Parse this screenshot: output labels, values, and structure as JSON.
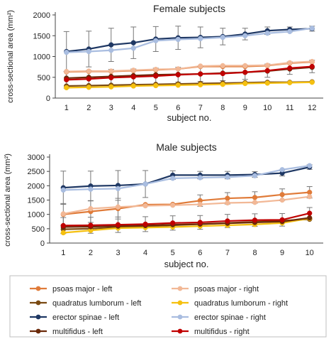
{
  "chart_data": [
    {
      "type": "line",
      "title": "Female subjects",
      "xlabel": "subject no.",
      "ylabel": "cross-sectional area (mm²)",
      "ylim": [
        0,
        2000
      ],
      "yticks": [
        0,
        500,
        1000,
        1500,
        2000
      ],
      "x": [
        1,
        2,
        3,
        4,
        5,
        6,
        7,
        8,
        9,
        10,
        11,
        12
      ],
      "grid": false,
      "series": [
        {
          "name": "psoas major - left",
          "values": [
            630,
            640,
            640,
            660,
            680,
            700,
            760,
            760,
            760,
            780,
            840,
            870
          ],
          "errors": [
            0,
            0,
            0,
            0,
            0,
            0,
            0,
            0,
            0,
            0,
            0,
            0
          ]
        },
        {
          "name": "psoas major - right",
          "values": [
            640,
            650,
            650,
            670,
            690,
            700,
            770,
            780,
            780,
            790,
            850,
            880
          ],
          "errors": [
            0,
            0,
            0,
            0,
            0,
            0,
            0,
            0,
            0,
            0,
            0,
            0
          ]
        },
        {
          "name": "quadratus lumborum - left",
          "values": [
            290,
            300,
            310,
            320,
            330,
            340,
            350,
            360,
            370,
            380,
            380,
            390
          ],
          "errors": [
            0,
            0,
            0,
            0,
            0,
            0,
            0,
            0,
            0,
            0,
            0,
            0
          ]
        },
        {
          "name": "quadratus lumborum - right",
          "values": [
            250,
            260,
            270,
            290,
            300,
            310,
            320,
            330,
            350,
            360,
            370,
            380
          ],
          "errors": [
            0,
            0,
            0,
            0,
            0,
            0,
            0,
            0,
            0,
            0,
            0,
            0
          ]
        },
        {
          "name": "erector spinae - left",
          "values": [
            1120,
            1180,
            1280,
            1330,
            1420,
            1450,
            1460,
            1480,
            1540,
            1620,
            1650,
            1670
          ],
          "errors": [
            480,
            430,
            400,
            380,
            300,
            280,
            250,
            200,
            140,
            90,
            60,
            60
          ]
        },
        {
          "name": "erector spinae - right",
          "values": [
            1100,
            1120,
            1150,
            1200,
            1380,
            1410,
            1430,
            1460,
            1500,
            1560,
            1600,
            1680
          ],
          "errors": [
            0,
            0,
            0,
            0,
            0,
            0,
            0,
            0,
            0,
            0,
            0,
            0
          ]
        },
        {
          "name": "multifidus - left",
          "values": [
            480,
            500,
            520,
            540,
            560,
            570,
            580,
            600,
            620,
            650,
            700,
            740
          ],
          "errors": [
            0,
            0,
            0,
            0,
            0,
            0,
            0,
            0,
            0,
            0,
            0,
            0
          ]
        },
        {
          "name": "multifidus - right",
          "values": [
            440,
            460,
            490,
            510,
            530,
            560,
            580,
            590,
            620,
            660,
            720,
            760
          ],
          "errors": [
            200,
            200,
            200,
            190,
            190,
            180,
            180,
            170,
            170,
            160,
            150,
            150
          ]
        }
      ]
    },
    {
      "type": "line",
      "title": "Male subjects",
      "xlabel": "subject no.",
      "ylabel": "cross-sectional area (mm²)",
      "ylim": [
        0,
        3000
      ],
      "yticks": [
        0,
        500,
        1000,
        1500,
        2000,
        2500,
        3000
      ],
      "x": [
        1,
        2,
        3,
        4,
        5,
        6,
        7,
        8,
        9,
        10
      ],
      "grid": false,
      "series": [
        {
          "name": "psoas major - left",
          "values": [
            1000,
            1100,
            1200,
            1340,
            1350,
            1480,
            1560,
            1590,
            1690,
            1770
          ],
          "errors": [
            380,
            380,
            360,
            0,
            0,
            200,
            200,
            200,
            200,
            200
          ]
        },
        {
          "name": "psoas major - right",
          "values": [
            1020,
            1200,
            1260,
            1300,
            1320,
            1350,
            1400,
            1420,
            1500,
            1620
          ],
          "errors": [
            0,
            0,
            0,
            0,
            0,
            0,
            0,
            0,
            0,
            0
          ]
        },
        {
          "name": "quadratus lumborum - left",
          "values": [
            480,
            500,
            550,
            580,
            620,
            660,
            700,
            740,
            780,
            830
          ],
          "errors": [
            0,
            0,
            0,
            0,
            0,
            0,
            0,
            0,
            0,
            0
          ]
        },
        {
          "name": "quadratus lumborum - right",
          "values": [
            360,
            440,
            520,
            540,
            560,
            590,
            620,
            650,
            700,
            860
          ],
          "errors": [
            0,
            0,
            0,
            0,
            0,
            0,
            0,
            0,
            0,
            0
          ]
        },
        {
          "name": "erector spinae - left",
          "values": [
            1930,
            1990,
            2010,
            2060,
            2370,
            2370,
            2370,
            2390,
            2440,
            2650
          ],
          "errors": [
            580,
            520,
            520,
            470,
            150,
            130,
            130,
            100,
            100,
            80
          ]
        },
        {
          "name": "erector spinae - right",
          "values": [
            1850,
            1880,
            1900,
            2060,
            2260,
            2280,
            2300,
            2350,
            2560,
            2700
          ],
          "errors": [
            0,
            0,
            0,
            0,
            0,
            0,
            0,
            0,
            0,
            0
          ]
        },
        {
          "name": "multifidus - left",
          "values": [
            560,
            570,
            590,
            610,
            640,
            660,
            690,
            720,
            750,
            880
          ],
          "errors": [
            0,
            0,
            0,
            0,
            0,
            0,
            0,
            0,
            0,
            0
          ]
        },
        {
          "name": "multifidus - right",
          "values": [
            610,
            620,
            640,
            660,
            700,
            720,
            770,
            800,
            810,
            1040
          ],
          "errors": [
            280,
            280,
            270,
            260,
            250,
            240,
            230,
            220,
            220,
            200
          ]
        }
      ]
    }
  ],
  "legend": {
    "entries": [
      {
        "label": "psoas major - left",
        "color": "#e07b39"
      },
      {
        "label": "psoas major - right",
        "color": "#f2b896"
      },
      {
        "label": "quadratus lumborum - left",
        "color": "#7a4a12"
      },
      {
        "label": "quadratus lumborum - right",
        "color": "#f5c010"
      },
      {
        "label": "erector spinae - left",
        "color": "#1f3864"
      },
      {
        "label": "erector spinae - right",
        "color": "#a9bde0"
      },
      {
        "label": "multifidus - left",
        "color": "#6b2a0a"
      },
      {
        "label": "multifidus - right",
        "color": "#c00000"
      }
    ]
  },
  "colors": {
    "psoas major - left": "#e07b39",
    "psoas major - right": "#f2b896",
    "quadratus lumborum - left": "#7a4a12",
    "quadratus lumborum - right": "#f5c010",
    "erector spinae - left": "#1f3864",
    "erector spinae - right": "#a9bde0",
    "multifidus - left": "#6b2a0a",
    "multifidus - right": "#c00000",
    "axis": "#444444",
    "errorbar": "#777777",
    "border": "#bfbfbf"
  }
}
